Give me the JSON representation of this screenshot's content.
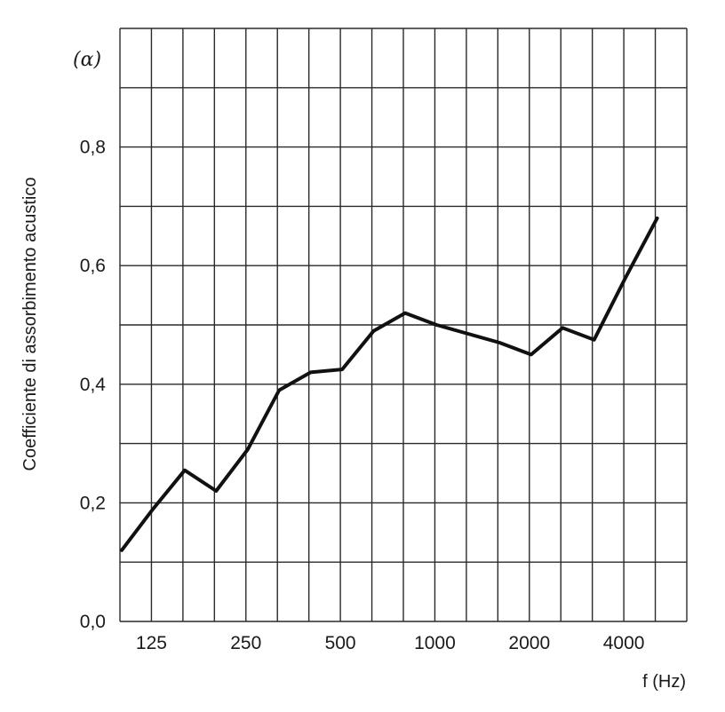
{
  "chart_data": {
    "type": "line",
    "title": "",
    "xlabel": "f (Hz)",
    "ylabel": "Coefficiente di assorbimento acustico",
    "unit_symbol": "(α)",
    "x_tick_labels": [
      "125",
      "250",
      "500",
      "1000",
      "2000",
      "4000"
    ],
    "y_tick_labels": [
      "0,0",
      "0,2",
      "0,4",
      "0,6",
      "0,8"
    ],
    "ylim": [
      0,
      1.0
    ],
    "grid": true,
    "series": [
      {
        "x": [
          100,
          125,
          160,
          200,
          250,
          315,
          400,
          500,
          630,
          800,
          1000,
          1250,
          1600,
          2000,
          2500,
          3150,
          4000,
          5000
        ],
        "values": [
          0.12,
          0.19,
          0.255,
          0.22,
          0.29,
          0.39,
          0.42,
          0.425,
          0.49,
          0.52,
          0.5,
          0.485,
          0.47,
          0.45,
          0.495,
          0.475,
          0.58,
          0.68
        ]
      }
    ],
    "colors": {
      "line": "#111111",
      "grid": "#2a2a2a"
    }
  }
}
